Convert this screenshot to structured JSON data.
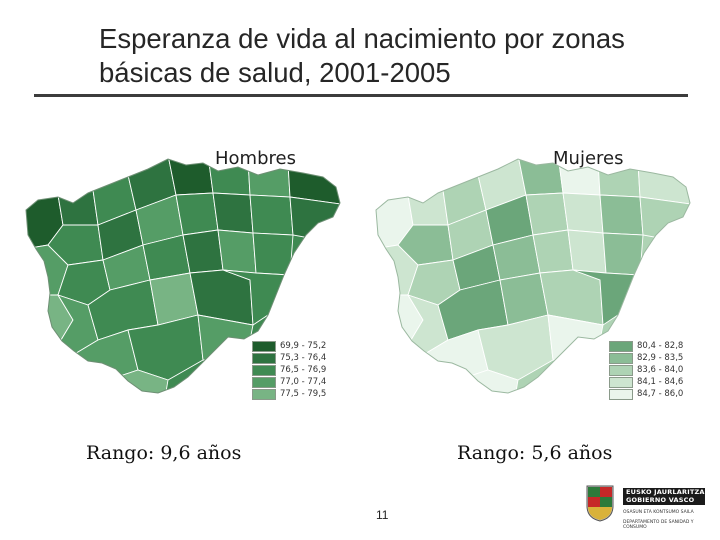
{
  "slide": {
    "title": "Esperanza de vida al nacimiento por zonas básicas de salud, 2001-2005",
    "page_number": "11"
  },
  "maps": [
    {
      "title": "Hombres",
      "range_text": "Rango: 9,6 años",
      "legend": [
        {
          "label": "69,9 - 75,2",
          "color": "#1e5c2c"
        },
        {
          "label": "75,3 - 76,4",
          "color": "#2e7340"
        },
        {
          "label": "76,5 - 76,9",
          "color": "#3f8a52"
        },
        {
          "label": "77,0 - 77,4",
          "color": "#559d66"
        },
        {
          "label": "77,5 - 79,5",
          "color": "#78b484"
        }
      ]
    },
    {
      "title": "Mujeres",
      "range_text": "Rango: 5,6 años",
      "legend": [
        {
          "label": "80,4 - 82,8",
          "color": "#6ba67a"
        },
        {
          "label": "82,9 - 83,5",
          "color": "#8bbd96"
        },
        {
          "label": "83,6 - 84,0",
          "color": "#aed3b4"
        },
        {
          "label": "84,1 - 84,6",
          "color": "#cde5d0"
        },
        {
          "label": "84,7 - 86,0",
          "color": "#eaf5ec"
        }
      ]
    }
  ],
  "logo": {
    "line1": "EUSKO JAURLARITZA",
    "line2": "GOBIERNO VASCO",
    "small1": "OSASUN ETA KONTSUMO SAILA",
    "small2": "DEPARTAMENTO DE SANIDAD Y CONSUMO"
  }
}
